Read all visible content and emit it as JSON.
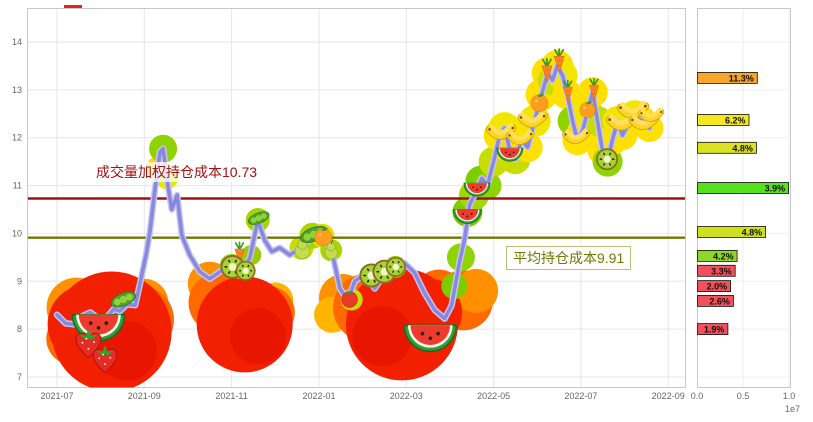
{
  "annotations": {
    "vwap_label": "成交量加权持仓成本10.73",
    "avg_label": "平均持仓成本9.91"
  },
  "chart_data": {
    "type": "line",
    "title": "",
    "x_unit": "months_since_2021-07",
    "x_ticks": [
      "2021-07",
      "2021-09",
      "2021-11",
      "2022-01",
      "2022-03",
      "2022-05",
      "2022-07",
      "2022-09"
    ],
    "y_ticks": [
      7,
      8,
      9,
      10,
      11,
      12,
      13,
      14
    ],
    "ylim": [
      6.8,
      14.7
    ],
    "grid": true,
    "series": [
      {
        "name": "price",
        "color": "#8888dd",
        "casing_color": "#c6c6f2",
        "points": [
          [
            0,
            8.3
          ],
          [
            0.2,
            8.12
          ],
          [
            0.41,
            8.1
          ],
          [
            0.6,
            8.28
          ],
          [
            0.76,
            8.35
          ],
          [
            0.95,
            8.22
          ],
          [
            1.1,
            8.2
          ],
          [
            1.3,
            8.42
          ],
          [
            1.44,
            8.38
          ],
          [
            1.6,
            8.52
          ],
          [
            1.79,
            8.5
          ],
          [
            1.9,
            8.95
          ],
          [
            2.05,
            9.6
          ],
          [
            2.13,
            10.05
          ],
          [
            2.24,
            10.9
          ],
          [
            2.36,
            11.7
          ],
          [
            2.43,
            11.77
          ],
          [
            2.54,
            11.0
          ],
          [
            2.63,
            10.5
          ],
          [
            2.75,
            10.8
          ],
          [
            2.86,
            9.95
          ],
          [
            3.04,
            9.55
          ],
          [
            3.27,
            9.2
          ],
          [
            3.5,
            9.05
          ],
          [
            3.73,
            9.2
          ],
          [
            3.91,
            9.3
          ],
          [
            4.07,
            9.42
          ],
          [
            4.26,
            9.2
          ],
          [
            4.42,
            9.5
          ],
          [
            4.6,
            10.28
          ],
          [
            4.76,
            9.85
          ],
          [
            4.92,
            9.62
          ],
          [
            5.1,
            9.7
          ],
          [
            5.33,
            9.55
          ],
          [
            5.56,
            9.68
          ],
          [
            5.79,
            9.88
          ],
          [
            5.97,
            10.1
          ],
          [
            6.13,
            9.9
          ],
          [
            6.29,
            9.65
          ],
          [
            6.48,
            8.85
          ],
          [
            6.66,
            8.6
          ],
          [
            6.82,
            9.0
          ],
          [
            7.05,
            9.15
          ],
          [
            7.28,
            8.85
          ],
          [
            7.51,
            9.18
          ],
          [
            7.73,
            9.28
          ],
          [
            7.96,
            9.38
          ],
          [
            8.19,
            9.18
          ],
          [
            8.42,
            8.75
          ],
          [
            8.65,
            8.4
          ],
          [
            8.88,
            8.22
          ],
          [
            9.04,
            8.5
          ],
          [
            9.22,
            9.4
          ],
          [
            9.34,
            9.9
          ],
          [
            9.45,
            10.6
          ],
          [
            9.59,
            10.85
          ],
          [
            9.73,
            11.15
          ],
          [
            9.86,
            11.0
          ],
          [
            10.0,
            11.5
          ],
          [
            10.14,
            12.05
          ],
          [
            10.25,
            12.2
          ],
          [
            10.37,
            11.75
          ],
          [
            10.5,
            11.55
          ],
          [
            10.64,
            11.95
          ],
          [
            10.78,
            11.8
          ],
          [
            10.94,
            12.35
          ],
          [
            11.1,
            12.9
          ],
          [
            11.24,
            13.35
          ],
          [
            11.35,
            13.2
          ],
          [
            11.46,
            13.5
          ],
          [
            11.58,
            13.3
          ],
          [
            11.69,
            12.9
          ],
          [
            11.81,
            12.35
          ],
          [
            11.92,
            11.95
          ],
          [
            12.04,
            12.15
          ],
          [
            12.15,
            12.55
          ],
          [
            12.27,
            12.95
          ],
          [
            12.38,
            12.35
          ],
          [
            12.49,
            11.75
          ],
          [
            12.61,
            11.5
          ],
          [
            12.72,
            11.95
          ],
          [
            12.84,
            12.35
          ],
          [
            12.95,
            12.05
          ],
          [
            13.07,
            12.25
          ],
          [
            13.23,
            12.45
          ],
          [
            13.39,
            12.35
          ],
          [
            13.57,
            12.2
          ]
        ]
      }
    ],
    "reference_lines": [
      {
        "name": "vwap",
        "value": 10.73,
        "color": "#a01212",
        "label": "成交量加权持仓成本10.73"
      },
      {
        "name": "avg",
        "value": 9.91,
        "color": "#6e7b00",
        "label": "平均持仓成本9.91"
      }
    ],
    "heat_blobs_format": "[color, x_month, price, radius_px]",
    "heat_blobs": [
      [
        "#ff9000",
        0.45,
        8.45,
        30
      ],
      [
        "#ff9000",
        2.0,
        8.55,
        24
      ],
      [
        "#ffb400",
        2.2,
        8.0,
        18
      ],
      [
        "#ff6a00",
        0.35,
        7.8,
        26
      ],
      [
        "#ff6a00",
        1.9,
        8.2,
        34
      ],
      [
        "#f32000",
        1.25,
        7.95,
        60
      ],
      [
        "#f32000",
        0.7,
        8.1,
        40
      ],
      [
        "#e81600",
        1.6,
        7.55,
        30
      ],
      [
        "#ff9000",
        3.5,
        8.95,
        22
      ],
      [
        "#ffb400",
        5.0,
        8.6,
        18
      ],
      [
        "#ff6a00",
        3.7,
        8.55,
        30
      ],
      [
        "#ff6a00",
        4.85,
        8.35,
        26
      ],
      [
        "#f32000",
        4.3,
        8.1,
        48
      ],
      [
        "#e81600",
        4.6,
        7.85,
        28
      ],
      [
        "#ff9000",
        6.55,
        8.65,
        24
      ],
      [
        "#ffb400",
        6.3,
        8.3,
        18
      ],
      [
        "#ff6a00",
        7.1,
        8.45,
        34
      ],
      [
        "#ff6a00",
        8.75,
        8.7,
        26
      ],
      [
        "#ff6a00",
        9.3,
        8.6,
        30
      ],
      [
        "#ff9000",
        9.6,
        8.8,
        22
      ],
      [
        "#f32000",
        7.9,
        8.1,
        56
      ],
      [
        "#f32000",
        8.5,
        8.35,
        34
      ],
      [
        "#e81600",
        7.45,
        7.85,
        30
      ]
    ],
    "glow_points_format": "[x_month, price, radius_px, color]",
    "glow_points": [
      [
        2.3,
        11.35,
        12,
        "#ffd400"
      ],
      [
        2.43,
        11.77,
        14,
        "#8fd400"
      ],
      [
        2.52,
        11.15,
        11,
        "#e8e800"
      ],
      [
        4.0,
        9.32,
        12,
        "#9ccc00"
      ],
      [
        4.2,
        9.28,
        11,
        "#c4d800"
      ],
      [
        4.45,
        9.55,
        10,
        "#9ccc00"
      ],
      [
        4.6,
        10.28,
        12,
        "#a8d400"
      ],
      [
        5.6,
        9.7,
        12,
        "#c8dc00"
      ],
      [
        5.85,
        9.95,
        13,
        "#a8d400"
      ],
      [
        6.08,
        9.95,
        12,
        "#e0e000"
      ],
      [
        6.28,
        9.65,
        11,
        "#a8d400"
      ],
      [
        6.75,
        8.62,
        11,
        "#c8dc00"
      ],
      [
        7.2,
        9.12,
        12,
        "#9ccc00"
      ],
      [
        7.5,
        9.2,
        12,
        "#b4d400"
      ],
      [
        7.75,
        9.3,
        11,
        "#9ccc00"
      ],
      [
        9.1,
        8.9,
        13,
        "#7ccc00"
      ],
      [
        9.25,
        9.5,
        14,
        "#8fd400"
      ],
      [
        9.4,
        10.45,
        15,
        "#7ccc00"
      ],
      [
        9.55,
        10.8,
        15,
        "#a0d800"
      ],
      [
        9.7,
        11.1,
        15,
        "#7ccc00"
      ],
      [
        9.86,
        11.0,
        14,
        "#8fd400"
      ],
      [
        10.0,
        11.5,
        15,
        "#c8dc00"
      ],
      [
        10.14,
        12.05,
        16,
        "#ffe000"
      ],
      [
        10.25,
        12.2,
        16,
        "#f2e600"
      ],
      [
        10.37,
        11.75,
        15,
        "#ffd400"
      ],
      [
        10.5,
        11.55,
        15,
        "#c8dc00"
      ],
      [
        10.64,
        11.95,
        15,
        "#ffe000"
      ],
      [
        10.78,
        11.8,
        15,
        "#ffe000"
      ],
      [
        10.94,
        12.35,
        16,
        "#f2e600"
      ],
      [
        11.1,
        12.9,
        16,
        "#ffe000"
      ],
      [
        11.24,
        13.35,
        16,
        "#ffe000"
      ],
      [
        11.35,
        13.2,
        15,
        "#c8dc00"
      ],
      [
        11.46,
        13.5,
        16,
        "#ffe000"
      ],
      [
        11.58,
        13.3,
        15,
        "#f2e600"
      ],
      [
        11.69,
        12.9,
        15,
        "#ffe000"
      ],
      [
        11.81,
        12.35,
        15,
        "#8fd400"
      ],
      [
        11.92,
        11.95,
        15,
        "#ffe000"
      ],
      [
        12.04,
        12.15,
        15,
        "#ffe000"
      ],
      [
        12.15,
        12.55,
        15,
        "#f2e600"
      ],
      [
        12.27,
        12.95,
        15,
        "#ffe000"
      ],
      [
        12.38,
        12.35,
        15,
        "#c8dc00"
      ],
      [
        12.49,
        11.75,
        15,
        "#ffe000"
      ],
      [
        12.61,
        11.5,
        15,
        "#8fd400"
      ],
      [
        12.72,
        11.95,
        15,
        "#ffe000"
      ],
      [
        12.84,
        12.35,
        15,
        "#f2e600"
      ],
      [
        12.95,
        12.05,
        15,
        "#ffe000"
      ],
      [
        13.07,
        12.25,
        15,
        "#ffe000"
      ],
      [
        13.23,
        12.45,
        16,
        "#f2e600"
      ],
      [
        13.39,
        12.35,
        15,
        "#ffe000"
      ],
      [
        13.57,
        12.2,
        14,
        "#ffe000"
      ]
    ],
    "fruits_format": "[type, x_month, price, size_px]",
    "fruits": [
      [
        "watermelon",
        0.95,
        8.3,
        26
      ],
      [
        "strawberry",
        0.72,
        7.78,
        20
      ],
      [
        "strawberry",
        1.1,
        7.45,
        19
      ],
      [
        "pea",
        1.52,
        8.62,
        13
      ],
      [
        "carrot",
        4.18,
        9.6,
        12
      ],
      [
        "kiwi",
        4.02,
        9.3,
        12
      ],
      [
        "kiwi",
        4.32,
        9.22,
        10
      ],
      [
        "pea",
        4.62,
        10.32,
        11
      ],
      [
        "pear",
        5.62,
        9.7,
        12
      ],
      [
        "pea",
        5.88,
        9.98,
        14
      ],
      [
        "orange",
        6.1,
        9.92,
        10
      ],
      [
        "pear",
        6.28,
        9.66,
        10
      ],
      [
        "tomato",
        6.7,
        8.62,
        10
      ],
      [
        "kiwi",
        7.2,
        9.12,
        12
      ],
      [
        "kiwi",
        7.5,
        9.2,
        12
      ],
      [
        "kiwi",
        7.76,
        9.3,
        10
      ],
      [
        "watermelon",
        8.55,
        8.08,
        26
      ],
      [
        "watermelon",
        9.4,
        10.5,
        14
      ],
      [
        "watermelon",
        9.62,
        11.05,
        13
      ],
      [
        "banana",
        10.18,
        12.1,
        14
      ],
      [
        "watermelon",
        10.37,
        11.78,
        13
      ],
      [
        "banana",
        10.62,
        11.98,
        13
      ],
      [
        "banana",
        10.9,
        12.35,
        14
      ],
      [
        "orange",
        11.05,
        12.72,
        10
      ],
      [
        "carrot",
        11.22,
        13.42,
        13
      ],
      [
        "carrot",
        11.5,
        13.62,
        13
      ],
      [
        "carrot",
        11.7,
        12.98,
        12
      ],
      [
        "banana",
        11.9,
        12.0,
        13
      ],
      [
        "carrot",
        12.3,
        13.02,
        12
      ],
      [
        "orange",
        12.15,
        12.58,
        9
      ],
      [
        "kiwi",
        12.6,
        11.55,
        11
      ],
      [
        "banana",
        12.95,
        12.3,
        15
      ],
      [
        "banana",
        13.2,
        12.55,
        15
      ],
      [
        "banana",
        13.45,
        12.3,
        14
      ],
      [
        "banana",
        13.62,
        12.45,
        12
      ]
    ],
    "distribution": {
      "type": "bar",
      "orientation": "horizontal",
      "x_ticks": [
        "0.0",
        "0.5",
        "1.0"
      ],
      "scale_note": "1e7",
      "xlim": [
        0,
        1.0
      ],
      "bars_note": "value in units of 1e7 shares at each price level",
      "bars": [
        {
          "price": 13.25,
          "value": 0.65,
          "color": "#f6a62a",
          "label": "11.3%"
        },
        {
          "price": 12.37,
          "value": 0.56,
          "color": "#f3e81c",
          "label": "6.2%"
        },
        {
          "price": 11.79,
          "value": 0.64,
          "color": "#d8e222",
          "label": "4.8%"
        },
        {
          "price": 10.95,
          "value": 0.99,
          "color": "#57e01f",
          "label": "3.9%"
        },
        {
          "price": 10.03,
          "value": 0.74,
          "color": "#cfe01f",
          "label": "4.8%"
        },
        {
          "price": 9.53,
          "value": 0.43,
          "color": "#8ed627",
          "label": "4.2%"
        },
        {
          "price": 9.22,
          "value": 0.41,
          "color": "#f0515a",
          "label": "3.3%"
        },
        {
          "price": 8.9,
          "value": 0.36,
          "color": "#f0515a",
          "label": "2.0%"
        },
        {
          "price": 8.59,
          "value": 0.39,
          "color": "#f0515a",
          "label": "2.6%"
        },
        {
          "price": 8.0,
          "value": 0.33,
          "color": "#f0515a",
          "label": "1.9%"
        }
      ]
    }
  }
}
